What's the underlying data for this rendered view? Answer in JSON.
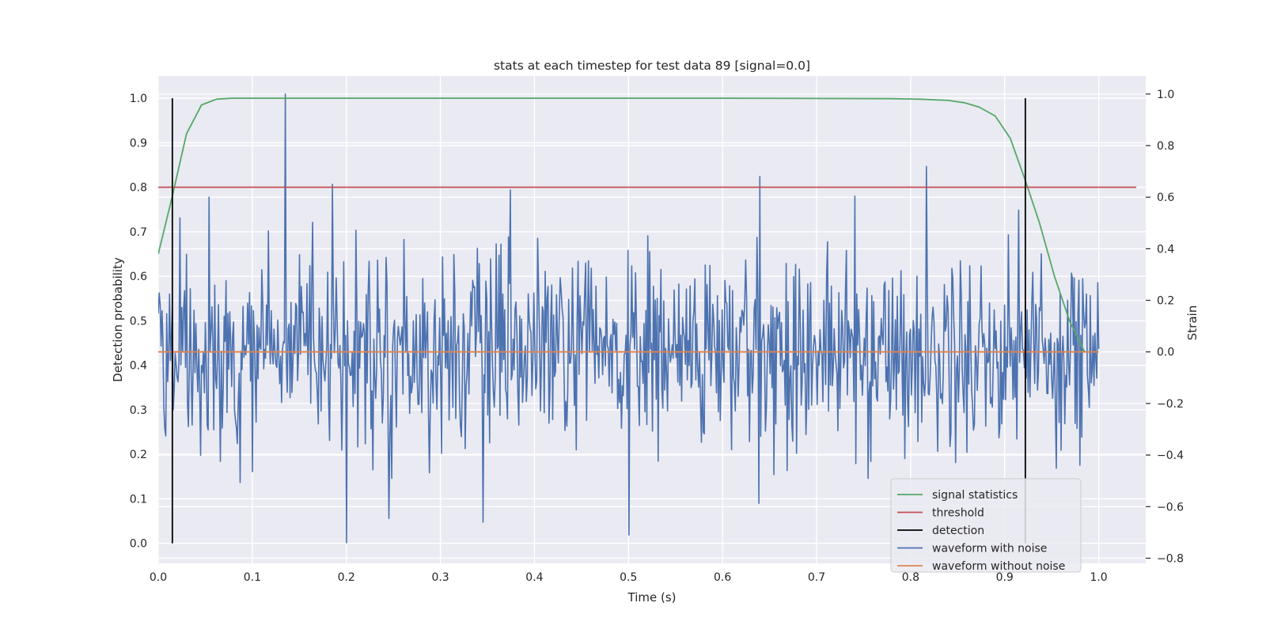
{
  "chart_data": {
    "type": "line",
    "title": "stats at each timestep for test data 89 [signal=0.0]",
    "xlabel": "Time (s)",
    "ylabel_left": "Detection probability",
    "ylabel_right": "Strain",
    "xlim": [
      0.0,
      1.05
    ],
    "ylim_left": [
      -0.045,
      1.05
    ],
    "ylim_right": [
      -0.82,
      1.07
    ],
    "x_ticks": [
      "0.0",
      "0.1",
      "0.2",
      "0.3",
      "0.4",
      "0.5",
      "0.6",
      "0.7",
      "0.8",
      "0.9",
      "1.0"
    ],
    "y_left_ticks": [
      "0.0",
      "0.1",
      "0.2",
      "0.3",
      "0.4",
      "0.5",
      "0.6",
      "0.7",
      "0.8",
      "0.9",
      "1.0"
    ],
    "y_right_ticks": [
      "−0.8",
      "−0.6",
      "−0.4",
      "−0.2",
      "0.0",
      "0.2",
      "0.4",
      "0.6",
      "0.8",
      "1.0"
    ],
    "grid": true,
    "legend_placement": "lower-right",
    "series": [
      {
        "name": "signal statistics",
        "axis": "left",
        "color": "#55a868",
        "x": [
          0.0,
          0.015,
          0.03,
          0.046,
          0.062,
          0.078,
          0.094,
          0.2,
          0.4,
          0.6,
          0.78,
          0.81,
          0.84,
          0.857,
          0.873,
          0.89,
          0.906,
          0.922,
          0.937,
          0.953,
          0.969,
          0.985
        ],
        "y": [
          0.65,
          0.78,
          0.92,
          0.985,
          0.998,
          1.0,
          1.0,
          1.0,
          1.0,
          1.0,
          0.999,
          0.998,
          0.995,
          0.99,
          0.98,
          0.96,
          0.91,
          0.815,
          0.72,
          0.6,
          0.5,
          0.43
        ]
      },
      {
        "name": "threshold",
        "axis": "left",
        "color": "#c44e52",
        "x": [
          0.0,
          1.04
        ],
        "y": [
          0.8,
          0.8
        ]
      },
      {
        "name": "detection",
        "axis": "left",
        "color": "#000000",
        "x": [
          0.015,
          0.922
        ],
        "y": [
          0.0,
          1.0
        ]
      },
      {
        "name": "waveform with noise",
        "axis": "right",
        "color": "#4c72b0",
        "x": [
          0.0,
          1.0
        ],
        "n_points": 1000,
        "noise_sigma": 0.19,
        "spikes": [
          [
            0.135,
            1.0
          ],
          [
            0.2,
            -0.74
          ],
          [
            0.185,
            0.65
          ],
          [
            0.64,
            0.68
          ],
          [
            0.5,
            -0.71
          ],
          [
            0.023,
            0.52
          ],
          [
            0.054,
            0.6
          ],
          [
            0.345,
            -0.66
          ],
          [
            0.915,
            0.55
          ]
        ]
      },
      {
        "name": "waveform without noise",
        "axis": "right",
        "color": "#dd8452",
        "x": [
          0.0,
          1.0
        ],
        "y": [
          0.0,
          0.0
        ]
      }
    ]
  }
}
